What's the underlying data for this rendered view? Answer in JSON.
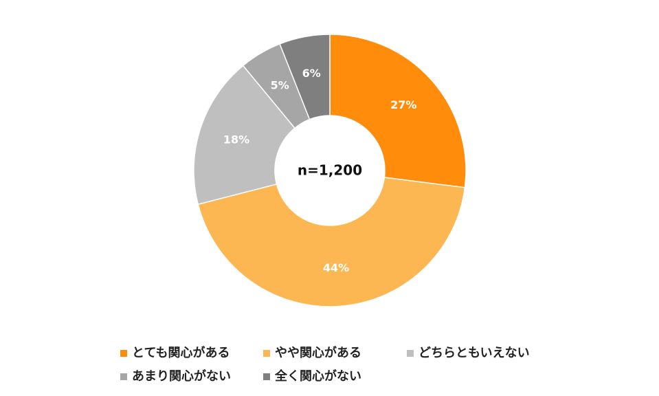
{
  "chart_data": {
    "type": "donut",
    "center_label": "n=1,200",
    "categories": [
      "とても関心がある",
      "やや関心がある",
      "どちらともいえない",
      "あまり関心がない",
      "全く関心がない"
    ],
    "values": [
      27,
      44,
      18,
      5,
      6
    ],
    "value_labels": [
      "27%",
      "44%",
      "18%",
      "5%",
      "6%"
    ],
    "colors": [
      "#ff8c0a",
      "#fdb752",
      "#bfbfbf",
      "#a6a6a6",
      "#7f7f7f"
    ],
    "legend": "bottom"
  }
}
